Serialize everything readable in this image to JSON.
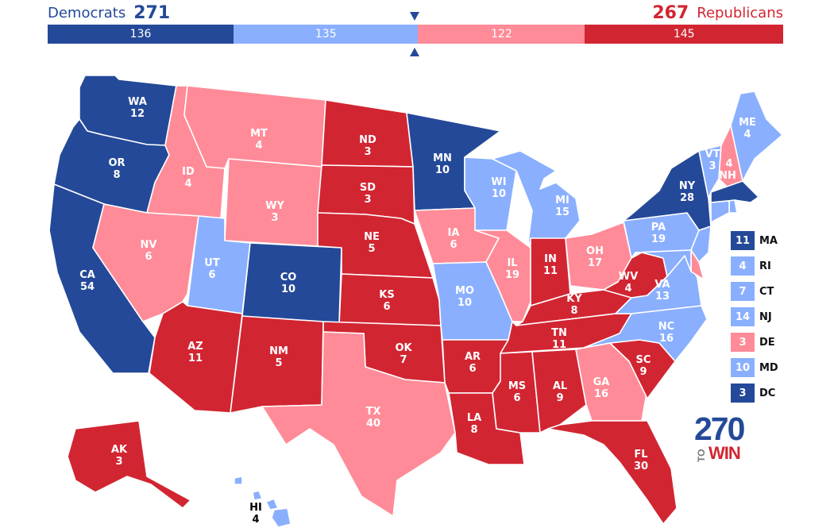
{
  "header": {
    "dem_label": "Democrats",
    "dem_total": "271",
    "rep_total": "267",
    "rep_label": "Republicans"
  },
  "colors": {
    "safe_dem": "#244999",
    "lean_dem": "#8aafff",
    "lean_rep": "#ff8b98",
    "safe_rep": "#d22532"
  },
  "tally": [
    {
      "category": "safe_dem",
      "value": "136"
    },
    {
      "category": "lean_dem",
      "value": "135"
    },
    {
      "category": "lean_rep",
      "value": "122"
    },
    {
      "category": "safe_rep",
      "value": "145"
    }
  ],
  "states": {
    "WA": {
      "abbr": "WA",
      "ev": "12",
      "rating": "safe_dem"
    },
    "OR": {
      "abbr": "OR",
      "ev": "8",
      "rating": "safe_dem"
    },
    "CA": {
      "abbr": "CA",
      "ev": "54",
      "rating": "safe_dem"
    },
    "ID": {
      "abbr": "ID",
      "ev": "4",
      "rating": "lean_rep"
    },
    "NV": {
      "abbr": "NV",
      "ev": "6",
      "rating": "lean_rep"
    },
    "MT": {
      "abbr": "MT",
      "ev": "4",
      "rating": "lean_rep"
    },
    "WY": {
      "abbr": "WY",
      "ev": "3",
      "rating": "lean_rep"
    },
    "UT": {
      "abbr": "UT",
      "ev": "6",
      "rating": "lean_dem"
    },
    "CO": {
      "abbr": "CO",
      "ev": "10",
      "rating": "safe_dem"
    },
    "AZ": {
      "abbr": "AZ",
      "ev": "11",
      "rating": "safe_rep"
    },
    "NM": {
      "abbr": "NM",
      "ev": "5",
      "rating": "safe_rep"
    },
    "ND": {
      "abbr": "ND",
      "ev": "3",
      "rating": "safe_rep"
    },
    "SD": {
      "abbr": "SD",
      "ev": "3",
      "rating": "safe_rep"
    },
    "NE": {
      "abbr": "NE",
      "ev": "5",
      "rating": "safe_rep"
    },
    "KS": {
      "abbr": "KS",
      "ev": "6",
      "rating": "safe_rep"
    },
    "OK": {
      "abbr": "OK",
      "ev": "7",
      "rating": "safe_rep"
    },
    "TX": {
      "abbr": "TX",
      "ev": "40",
      "rating": "lean_rep"
    },
    "MN": {
      "abbr": "MN",
      "ev": "10",
      "rating": "safe_dem"
    },
    "IA": {
      "abbr": "IA",
      "ev": "6",
      "rating": "lean_rep"
    },
    "MO": {
      "abbr": "MO",
      "ev": "10",
      "rating": "lean_dem"
    },
    "AR": {
      "abbr": "AR",
      "ev": "6",
      "rating": "safe_rep"
    },
    "LA": {
      "abbr": "LA",
      "ev": "8",
      "rating": "safe_rep"
    },
    "WI": {
      "abbr": "WI",
      "ev": "10",
      "rating": "lean_dem"
    },
    "IL": {
      "abbr": "IL",
      "ev": "19",
      "rating": "lean_rep"
    },
    "MI": {
      "abbr": "MI",
      "ev": "15",
      "rating": "lean_dem"
    },
    "IN": {
      "abbr": "IN",
      "ev": "11",
      "rating": "safe_rep"
    },
    "OH": {
      "abbr": "OH",
      "ev": "17",
      "rating": "lean_rep"
    },
    "KY": {
      "abbr": "KY",
      "ev": "8",
      "rating": "safe_rep"
    },
    "TN": {
      "abbr": "TN",
      "ev": "11",
      "rating": "safe_rep"
    },
    "MS": {
      "abbr": "MS",
      "ev": "6",
      "rating": "safe_rep"
    },
    "AL": {
      "abbr": "AL",
      "ev": "9",
      "rating": "safe_rep"
    },
    "GA": {
      "abbr": "GA",
      "ev": "16",
      "rating": "lean_rep"
    },
    "FL": {
      "abbr": "FL",
      "ev": "30",
      "rating": "safe_rep"
    },
    "SC": {
      "abbr": "SC",
      "ev": "9",
      "rating": "safe_rep"
    },
    "NC": {
      "abbr": "NC",
      "ev": "16",
      "rating": "lean_dem"
    },
    "VA": {
      "abbr": "VA",
      "ev": "13",
      "rating": "lean_dem"
    },
    "WV": {
      "abbr": "WV",
      "ev": "4",
      "rating": "safe_rep"
    },
    "PA": {
      "abbr": "PA",
      "ev": "19",
      "rating": "lean_dem"
    },
    "NY": {
      "abbr": "NY",
      "ev": "28",
      "rating": "safe_dem"
    },
    "VT": {
      "abbr": "VT",
      "ev": "3",
      "rating": "lean_dem"
    },
    "NH": {
      "abbr": "NH",
      "ev": "4",
      "rating": "lean_rep"
    },
    "ME": {
      "abbr": "ME",
      "ev": "4",
      "rating": "lean_dem"
    },
    "AK": {
      "abbr": "AK",
      "ev": "3",
      "rating": "safe_rep"
    },
    "HI": {
      "abbr": "HI",
      "ev": "4",
      "rating": "lean_dem"
    }
  },
  "small_states": [
    {
      "abbr": "MA",
      "ev": "11",
      "rating": "safe_dem"
    },
    {
      "abbr": "RI",
      "ev": "4",
      "rating": "lean_dem"
    },
    {
      "abbr": "CT",
      "ev": "7",
      "rating": "lean_dem"
    },
    {
      "abbr": "NJ",
      "ev": "14",
      "rating": "lean_dem"
    },
    {
      "abbr": "DE",
      "ev": "3",
      "rating": "lean_rep"
    },
    {
      "abbr": "MD",
      "ev": "10",
      "rating": "lean_dem"
    },
    {
      "abbr": "DC",
      "ev": "3",
      "rating": "safe_dem"
    }
  ],
  "small_state_fills": {
    "MA": "safe_dem",
    "RI": "lean_dem",
    "CT": "lean_dem",
    "NJ": "lean_dem",
    "DE": "lean_rep",
    "MD": "lean_dem"
  },
  "logo": {
    "number": "270",
    "to": "TO",
    "win": "WIN"
  }
}
